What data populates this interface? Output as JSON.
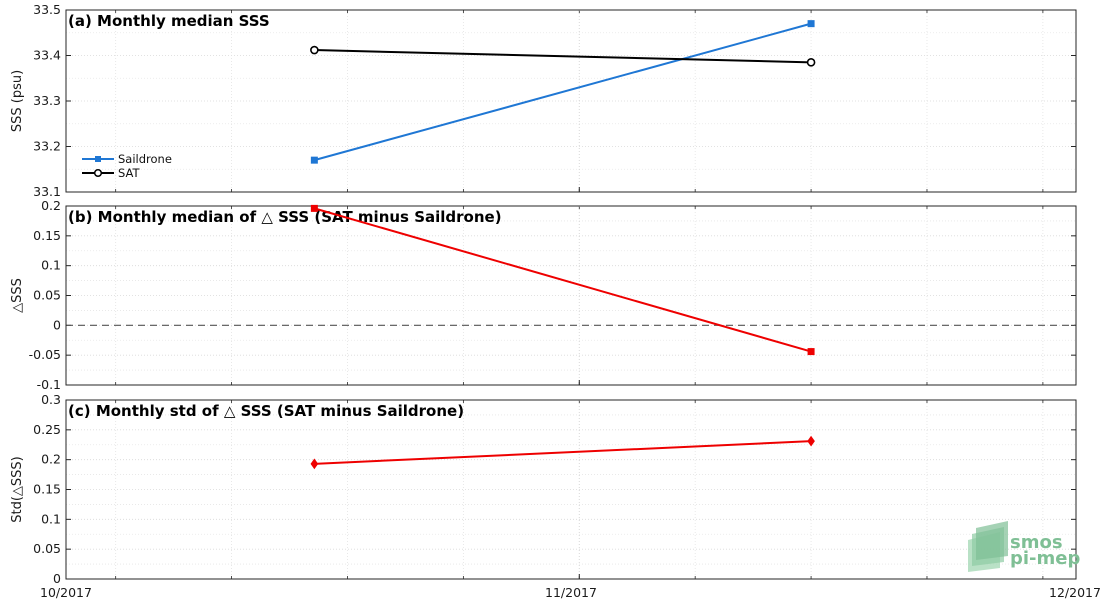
{
  "chart_data": [
    {
      "type": "line",
      "title": "(a) Monthly median SSS",
      "ylabel": "SSS (psu)",
      "xlabel": "",
      "ylim": [
        33.1,
        33.5
      ],
      "yticks": [
        "33.1",
        "33.2",
        "33.3",
        "33.4",
        "33.5"
      ],
      "grid": true,
      "legend_position": "bottom-left",
      "series": [
        {
          "name": "Saildrone",
          "color": "#1f77d4",
          "marker": "square",
          "x": [
            "2017-10-16",
            "2017-11-15"
          ],
          "values": [
            33.17,
            33.47
          ]
        },
        {
          "name": "SAT",
          "color": "#000000",
          "marker": "circle",
          "x": [
            "2017-10-16",
            "2017-11-15"
          ],
          "values": [
            33.412,
            33.385
          ]
        }
      ]
    },
    {
      "type": "line",
      "title": "(b) Monthly median of △ SSS (SAT minus Saildrone)",
      "ylabel": "△SSS",
      "xlabel": "",
      "ylim": [
        -0.1,
        0.2
      ],
      "yticks": [
        "-0.1",
        "-0.05",
        "0",
        "0.05",
        "0.1",
        "0.15",
        "0.2"
      ],
      "grid": true,
      "zero_line": true,
      "series": [
        {
          "color": "#ee0000",
          "marker": "square",
          "x": [
            "2017-10-16",
            "2017-11-15"
          ],
          "values": [
            0.196,
            -0.044
          ]
        }
      ]
    },
    {
      "type": "line",
      "title": "(c) Monthly std of △ SSS (SAT minus Saildrone)",
      "ylabel": "Std(△SSS)",
      "xlabel": "",
      "ylim": [
        0,
        0.3
      ],
      "yticks": [
        "0",
        "0.05",
        "0.1",
        "0.15",
        "0.2",
        "0.25",
        "0.3"
      ],
      "grid": true,
      "series": [
        {
          "color": "#ee0000",
          "marker": "diamond",
          "x": [
            "2017-10-16",
            "2017-11-15"
          ],
          "values": [
            0.193,
            0.231
          ]
        }
      ]
    }
  ],
  "x_axis": {
    "range": [
      "2017-10-01",
      "2017-12-01"
    ],
    "tick_labels": [
      "10/2017",
      "11/2017",
      "12/2017"
    ]
  },
  "logo": {
    "line1": "smos",
    "line2": "pi-mep",
    "color": "#7fbf95"
  }
}
